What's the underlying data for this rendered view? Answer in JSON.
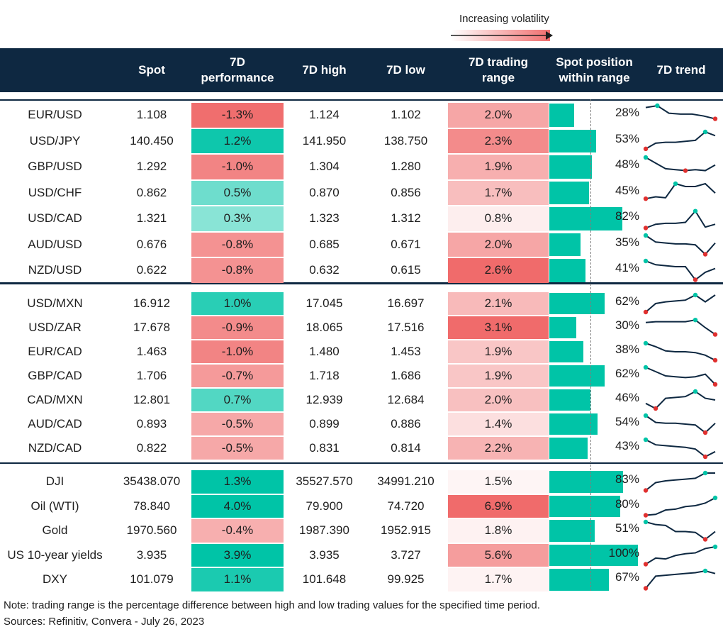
{
  "legend": {
    "label": "Increasing volatility"
  },
  "header": {
    "columns": [
      "",
      "Spot",
      "7D performance",
      "7D high",
      "7D low",
      "7D trading range",
      "Spot position within range",
      "7D trend"
    ]
  },
  "colors": {
    "header_bg": "#0e2841",
    "position_bar": "#00c4a7"
  },
  "chart_data": {
    "type": "table",
    "groups": [
      {
        "rows": [
          {
            "pair": "EUR/USD",
            "spot": "1.108",
            "perf": "-1.3%",
            "high": "1.124",
            "low": "1.102",
            "range": "2.0%",
            "position": "28%",
            "perf_value": -1.3,
            "range_value": 2.0,
            "position_value": 28,
            "trend": [
              0.9,
              1.0,
              0.6,
              0.55,
              0.55,
              0.45,
              0.3
            ]
          },
          {
            "pair": "USD/JPY",
            "spot": "140.450",
            "perf": "1.2%",
            "high": "141.950",
            "low": "138.750",
            "range": "2.3%",
            "position": "53%",
            "perf_value": 1.2,
            "range_value": 2.3,
            "position_value": 53,
            "trend": [
              0.1,
              0.4,
              0.45,
              0.45,
              0.5,
              0.55,
              1.0,
              0.8
            ]
          },
          {
            "pair": "GBP/USD",
            "spot": "1.292",
            "perf": "-1.0%",
            "high": "1.304",
            "low": "1.280",
            "range": "1.9%",
            "position": "48%",
            "perf_value": -1.0,
            "range_value": 1.9,
            "position_value": 48,
            "trend": [
              1.0,
              0.7,
              0.4,
              0.35,
              0.3,
              0.35,
              0.3,
              0.6
            ]
          },
          {
            "pair": "USD/CHF",
            "spot": "0.862",
            "perf": "0.5%",
            "high": "0.870",
            "low": "0.856",
            "range": "1.7%",
            "position": "45%",
            "perf_value": 0.5,
            "range_value": 1.7,
            "position_value": 45,
            "trend": [
              0.2,
              0.3,
              0.25,
              1.0,
              0.85,
              0.85,
              1.0,
              0.5
            ]
          },
          {
            "pair": "USD/CAD",
            "spot": "1.321",
            "perf": "0.3%",
            "high": "1.323",
            "low": "1.312",
            "range": "0.8%",
            "position": "82%",
            "perf_value": 0.3,
            "range_value": 0.8,
            "position_value": 82,
            "trend": [
              0.0,
              0.2,
              0.25,
              0.25,
              0.3,
              0.9,
              0.05,
              0.2
            ]
          },
          {
            "pair": "AUD/USD",
            "spot": "0.676",
            "perf": "-0.8%",
            "high": "0.685",
            "low": "0.671",
            "range": "2.0%",
            "position": "35%",
            "perf_value": -0.8,
            "range_value": 2.0,
            "position_value": 35,
            "trend": [
              1.0,
              0.65,
              0.6,
              0.55,
              0.55,
              0.5,
              0.0,
              0.6
            ]
          },
          {
            "pair": "NZD/USD",
            "spot": "0.622",
            "perf": "-0.8%",
            "high": "0.632",
            "low": "0.615",
            "range": "2.6%",
            "position": "41%",
            "perf_value": -0.8,
            "range_value": 2.6,
            "position_value": 41,
            "trend": [
              1.0,
              0.8,
              0.75,
              0.7,
              0.7,
              0.0,
              0.4,
              0.6
            ]
          }
        ]
      },
      {
        "rows": [
          {
            "pair": "USD/MXN",
            "spot": "16.912",
            "perf": "1.0%",
            "high": "17.045",
            "low": "16.697",
            "range": "2.1%",
            "position": "62%",
            "perf_value": 1.0,
            "range_value": 2.1,
            "position_value": 62,
            "trend": [
              0.0,
              0.5,
              0.6,
              0.65,
              0.7,
              1.0,
              0.6,
              1.0
            ]
          },
          {
            "pair": "USD/ZAR",
            "spot": "17.678",
            "perf": "-0.9%",
            "high": "18.065",
            "low": "17.516",
            "range": "3.1%",
            "position": "30%",
            "perf_value": -0.9,
            "range_value": 3.1,
            "position_value": 30,
            "trend": [
              0.8,
              0.85,
              0.85,
              0.85,
              0.85,
              0.95,
              0.5,
              0.1
            ]
          },
          {
            "pair": "EUR/CAD",
            "spot": "1.463",
            "perf": "-1.0%",
            "high": "1.480",
            "low": "1.453",
            "range": "1.9%",
            "position": "38%",
            "perf_value": -1.0,
            "range_value": 1.9,
            "position_value": 38,
            "trend": [
              1.0,
              0.8,
              0.55,
              0.5,
              0.5,
              0.45,
              0.3,
              0.0
            ]
          },
          {
            "pair": "GBP/CAD",
            "spot": "1.706",
            "perf": "-0.7%",
            "high": "1.718",
            "low": "1.686",
            "range": "1.9%",
            "position": "62%",
            "perf_value": -0.7,
            "range_value": 1.9,
            "position_value": 62,
            "trend": [
              1.0,
              0.75,
              0.5,
              0.45,
              0.4,
              0.45,
              0.6,
              0.0
            ]
          },
          {
            "pair": "CAD/MXN",
            "spot": "12.801",
            "perf": "0.7%",
            "high": "12.939",
            "low": "12.684",
            "range": "2.0%",
            "position": "46%",
            "perf_value": 0.7,
            "range_value": 2.0,
            "position_value": 46,
            "trend": [
              0.3,
              0.0,
              0.6,
              0.65,
              0.7,
              1.0,
              0.6,
              0.5
            ]
          },
          {
            "pair": "AUD/CAD",
            "spot": "0.893",
            "perf": "-0.5%",
            "high": "0.899",
            "low": "0.886",
            "range": "1.4%",
            "position": "54%",
            "perf_value": -0.5,
            "range_value": 1.4,
            "position_value": 54,
            "trend": [
              1.0,
              0.6,
              0.55,
              0.55,
              0.5,
              0.45,
              0.0,
              0.55
            ]
          },
          {
            "pair": "NZD/CAD",
            "spot": "0.822",
            "perf": "-0.5%",
            "high": "0.831",
            "low": "0.814",
            "range": "2.2%",
            "position": "43%",
            "perf_value": -0.5,
            "range_value": 2.2,
            "position_value": 43,
            "trend": [
              1.0,
              0.7,
              0.65,
              0.6,
              0.55,
              0.45,
              0.0,
              0.3
            ]
          }
        ]
      },
      {
        "rows": [
          {
            "pair": "DJI",
            "spot": "35438.070",
            "perf": "1.3%",
            "high": "35527.570",
            "low": "34991.210",
            "range": "1.5%",
            "position": "83%",
            "perf_value": 1.3,
            "range_value": 1.5,
            "position_value": 83,
            "trend": [
              0.0,
              0.45,
              0.55,
              0.6,
              0.65,
              0.7,
              1.0,
              1.0
            ]
          },
          {
            "pair": "Oil (WTI)",
            "spot": "78.840",
            "perf": "4.0%",
            "high": "79.900",
            "low": "74.720",
            "range": "6.9%",
            "position": "80%",
            "perf_value": 4.0,
            "range_value": 6.9,
            "position_value": 80,
            "trend": [
              0.0,
              0.05,
              0.3,
              0.35,
              0.5,
              0.55,
              0.7,
              1.0
            ]
          },
          {
            "pair": "Gold",
            "spot": "1970.560",
            "perf": "-0.4%",
            "high": "1987.390",
            "low": "1952.915",
            "range": "1.8%",
            "position": "51%",
            "perf_value": -0.4,
            "range_value": 1.8,
            "position_value": 51,
            "trend": [
              1.0,
              0.85,
              0.8,
              0.45,
              0.45,
              0.4,
              0.0,
              0.45
            ]
          },
          {
            "pair": "US 10-year yields",
            "spot": "3.935",
            "perf": "3.9%",
            "high": "3.935",
            "low": "3.727",
            "range": "5.6%",
            "position": "100%",
            "perf_value": 3.9,
            "range_value": 5.6,
            "position_value": 100,
            "trend": [
              0.0,
              0.35,
              0.3,
              0.5,
              0.6,
              0.65,
              0.9,
              1.0
            ]
          },
          {
            "pair": "DXY",
            "spot": "101.079",
            "perf": "1.1%",
            "high": "101.648",
            "low": "99.925",
            "range": "1.7%",
            "position": "67%",
            "perf_value": 1.1,
            "range_value": 1.7,
            "position_value": 67,
            "trend": [
              0.0,
              0.7,
              0.75,
              0.8,
              0.85,
              0.9,
              1.0,
              0.85
            ]
          }
        ]
      }
    ]
  },
  "footer": {
    "note": "Note: trading range is the percentage difference between high and low trading values for the specified time period.",
    "sources": "Sources: Refinitiv, Convera - July 26, 2023"
  }
}
